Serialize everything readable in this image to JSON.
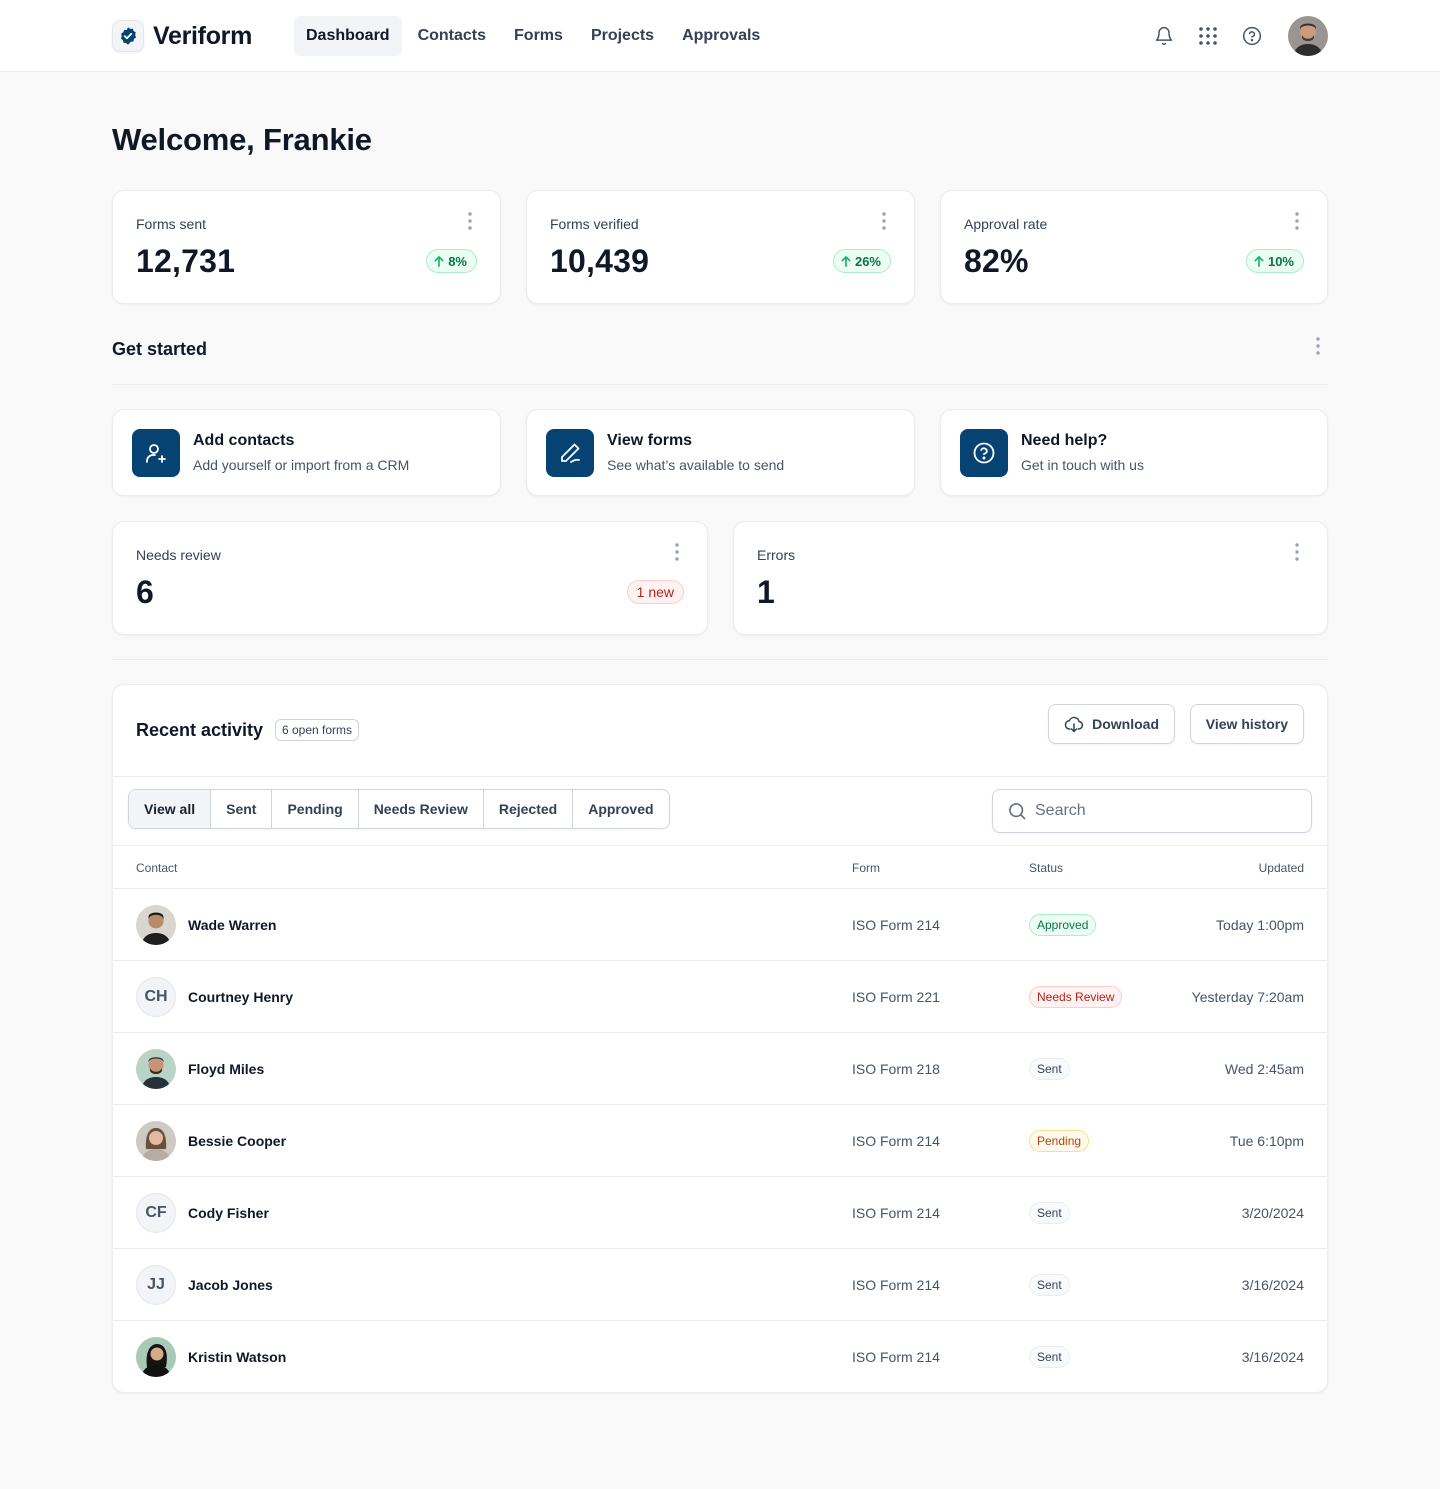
{
  "brand": {
    "name": "Veriform"
  },
  "nav": {
    "items": [
      {
        "label": "Dashboard",
        "active": true
      },
      {
        "label": "Contacts",
        "active": false
      },
      {
        "label": "Forms",
        "active": false
      },
      {
        "label": "Projects",
        "active": false
      },
      {
        "label": "Approvals",
        "active": false
      }
    ]
  },
  "header_icons": [
    "bell-icon",
    "apps-grid-icon",
    "help-circle-icon"
  ],
  "welcome": "Welcome, Frankie",
  "stats": [
    {
      "label": "Forms sent",
      "value": "12,731",
      "change": "8%"
    },
    {
      "label": "Forms verified",
      "value": "10,439",
      "change": "26%"
    },
    {
      "label": "Approval rate",
      "value": "82%",
      "change": "10%"
    }
  ],
  "get_started": {
    "title": "Get started",
    "cards": [
      {
        "title": "Add contacts",
        "subtitle": "Add yourself or import from a CRM",
        "icon": "user-plus-icon"
      },
      {
        "title": "View forms",
        "subtitle": "See what’s available to send",
        "icon": "pen-icon"
      },
      {
        "title": "Need help?",
        "subtitle": "Get in touch with us",
        "icon": "help-circle-icon"
      }
    ]
  },
  "alerts": [
    {
      "label": "Needs review",
      "value": "6",
      "badge": "1 new"
    },
    {
      "label": "Errors",
      "value": "1"
    }
  ],
  "recent_activity": {
    "title": "Recent activity",
    "count_badge": "6 open forms",
    "download_label": "Download",
    "history_label": "View history",
    "filters": [
      {
        "label": "View all",
        "active": true
      },
      {
        "label": "Sent",
        "active": false
      },
      {
        "label": "Pending",
        "active": false
      },
      {
        "label": "Needs Review",
        "active": false
      },
      {
        "label": "Rejected",
        "active": false
      },
      {
        "label": "Approved",
        "active": false
      }
    ],
    "search_placeholder": "Search",
    "columns": {
      "contact": "Contact",
      "form": "Form",
      "status": "Status",
      "updated": "Updated"
    },
    "rows": [
      {
        "name": "Wade Warren",
        "initials": "",
        "form": "ISO Form 214",
        "status": "Approved",
        "updated": "Today 1:00pm"
      },
      {
        "name": "Courtney Henry",
        "initials": "CH",
        "form": "ISO Form 221",
        "status": "Needs Review",
        "updated": "Yesterday 7:20am"
      },
      {
        "name": "Floyd Miles",
        "initials": "",
        "form": "ISO Form 218",
        "status": "Sent",
        "updated": "Wed 2:45am"
      },
      {
        "name": "Bessie Cooper",
        "initials": "",
        "form": "ISO Form 214",
        "status": "Pending",
        "updated": "Tue 6:10pm"
      },
      {
        "name": "Cody Fisher",
        "initials": "CF",
        "form": "ISO Form 214",
        "status": "Sent",
        "updated": "3/20/2024"
      },
      {
        "name": "Jacob Jones",
        "initials": "JJ",
        "form": "ISO Form 214",
        "status": "Sent",
        "updated": "3/16/2024"
      },
      {
        "name": "Kristin Watson",
        "initials": "",
        "form": "ISO Form 214",
        "status": "Sent",
        "updated": "3/16/2024"
      }
    ]
  },
  "colors": {
    "brand": "#064372",
    "success": "#067647",
    "error": "#b42318",
    "warning": "#b54708"
  }
}
